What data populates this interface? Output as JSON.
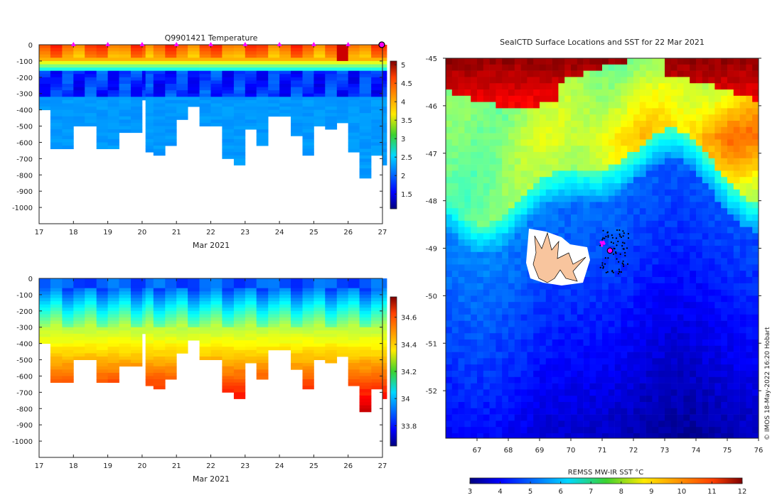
{
  "chart_data": [
    {
      "id": "temperature",
      "type": "heatmap",
      "title": "Q9901421  Temperature",
      "xlabel": "Mar 2021",
      "xlim": [
        17,
        27
      ],
      "xticks": [
        17,
        18,
        19,
        20,
        21,
        22,
        23,
        24,
        25,
        26,
        27
      ],
      "ylim": [
        -1100,
        0
      ],
      "yticks": [
        0,
        -100,
        -200,
        -300,
        -400,
        -500,
        -600,
        -700,
        -800,
        -900,
        -1000
      ],
      "colorbar": {
        "min": 1.1,
        "max": 5.1,
        "ticks": [
          1.5,
          2,
          2.5,
          3,
          3.5,
          4,
          4.5,
          5
        ]
      },
      "profile_days": [
        17.0,
        17.33,
        17.67,
        18.0,
        18.33,
        18.67,
        19.0,
        19.33,
        19.67,
        20.0,
        20.1,
        20.33,
        20.67,
        21.0,
        21.33,
        21.67,
        22.0,
        22.33,
        22.67,
        23.0,
        23.33,
        23.67,
        24.0,
        24.33,
        24.67,
        25.0,
        25.33,
        25.67,
        26.0,
        26.33,
        26.67,
        27.0
      ],
      "profile_max_depth_m": [
        400,
        630,
        630,
        500,
        500,
        640,
        640,
        530,
        530,
        340,
        650,
        670,
        610,
        460,
        380,
        500,
        500,
        700,
        740,
        520,
        620,
        440,
        440,
        550,
        670,
        500,
        520,
        480,
        650,
        820,
        680,
        730
      ],
      "surface_markers_days": [
        18,
        19,
        20,
        21,
        22,
        23,
        24,
        25,
        26
      ],
      "current_marker_day": 27
    },
    {
      "id": "salinity",
      "type": "heatmap",
      "title": "",
      "xlabel": "Mar 2021",
      "xlim": [
        17,
        27
      ],
      "xticks": [
        17,
        18,
        19,
        20,
        21,
        22,
        23,
        24,
        25,
        26,
        27
      ],
      "ylim": [
        -1100,
        0
      ],
      "yticks": [
        0,
        -100,
        -200,
        -300,
        -400,
        -500,
        -600,
        -700,
        -800,
        -900,
        -1000
      ],
      "colorbar": {
        "min": 33.65,
        "max": 34.75,
        "ticks": [
          33.8,
          34,
          34.2,
          34.4,
          34.6
        ]
      }
    },
    {
      "id": "sst-map",
      "type": "heatmap",
      "title": "SealCTD Surface Locations and SST for 22 Mar 2021",
      "xlabel": "",
      "xlim": [
        66,
        76
      ],
      "xticks": [
        67,
        68,
        69,
        70,
        71,
        72,
        73,
        74,
        75,
        76
      ],
      "ylim": [
        -53,
        -45
      ],
      "yticks": [
        -45,
        -46,
        -47,
        -48,
        -49,
        -50,
        -51,
        -52
      ],
      "colorbar": {
        "label": "REMSS MW-IR SST °C",
        "min": 3,
        "max": 12,
        "ticks": [
          3,
          4,
          5,
          6,
          7,
          8,
          9,
          10,
          11,
          12
        ]
      },
      "current_location": {
        "lon": 71.25,
        "lat": -49.05
      },
      "watermark": "© IMOS 18-May-2022 16:20 Hobart"
    }
  ]
}
